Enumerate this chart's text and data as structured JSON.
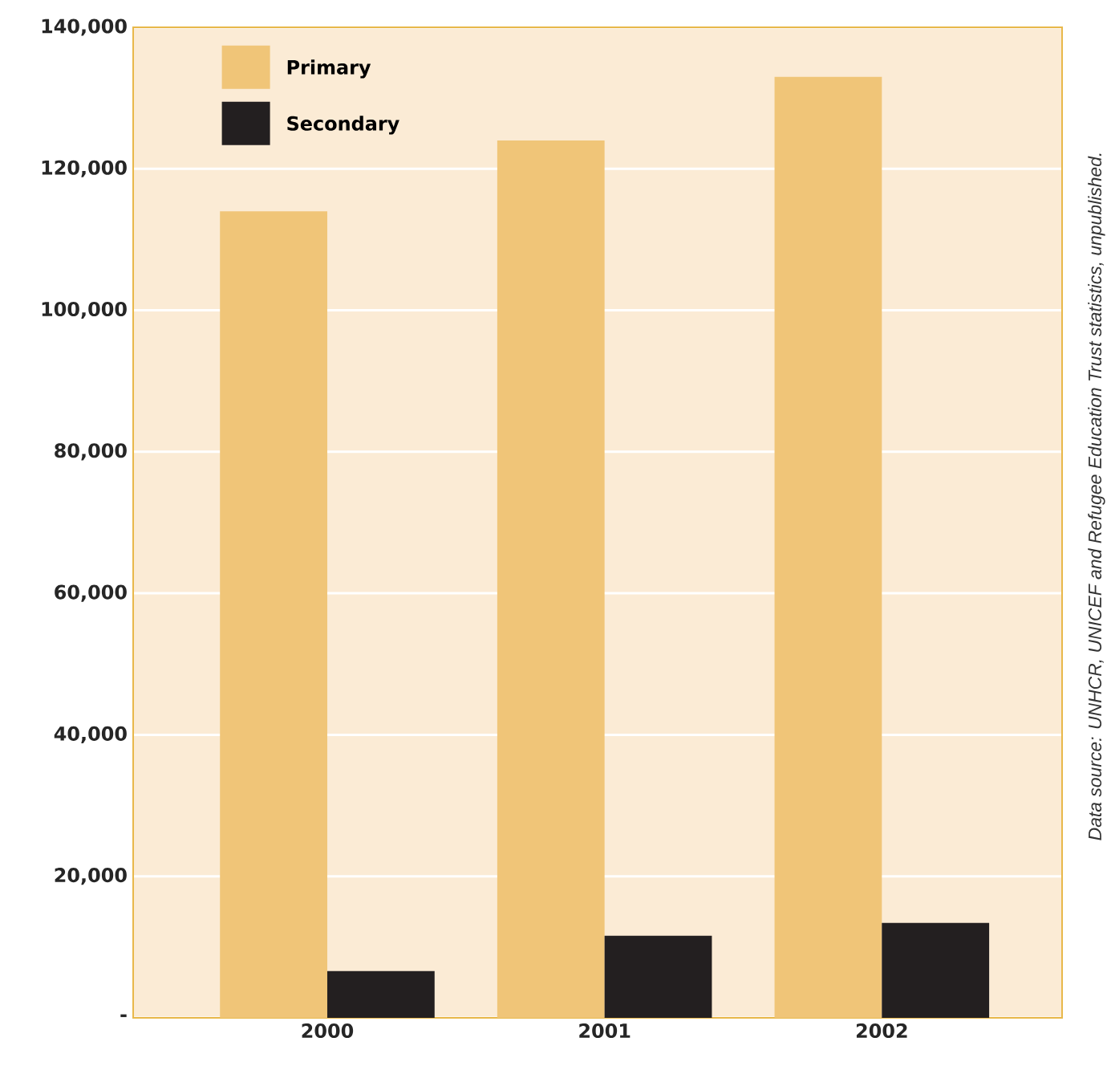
{
  "chart_data": {
    "type": "bar",
    "categories": [
      "2000",
      "2001",
      "2002"
    ],
    "series": [
      {
        "name": "Primary",
        "color": "#f0c578",
        "values": [
          114000,
          124000,
          133000
        ]
      },
      {
        "name": "Secondary",
        "color": "#231f20",
        "values": [
          6600,
          11600,
          13400
        ]
      }
    ],
    "ylim": [
      0,
      140000
    ],
    "yticks": [
      {
        "value": 0,
        "label": "-"
      },
      {
        "value": 20000,
        "label": "20,000"
      },
      {
        "value": 40000,
        "label": "40,000"
      },
      {
        "value": 60000,
        "label": "60,000"
      },
      {
        "value": 80000,
        "label": "80,000"
      },
      {
        "value": 100000,
        "label": "100,000"
      },
      {
        "value": 120000,
        "label": "120,000"
      },
      {
        "value": 140000,
        "label": "140,000"
      }
    ],
    "grid": "y",
    "legend": "top left",
    "annotations": [
      "Data source: UNHCR, UNICEF and Refugee Education Trust statistics, unpublished."
    ]
  }
}
